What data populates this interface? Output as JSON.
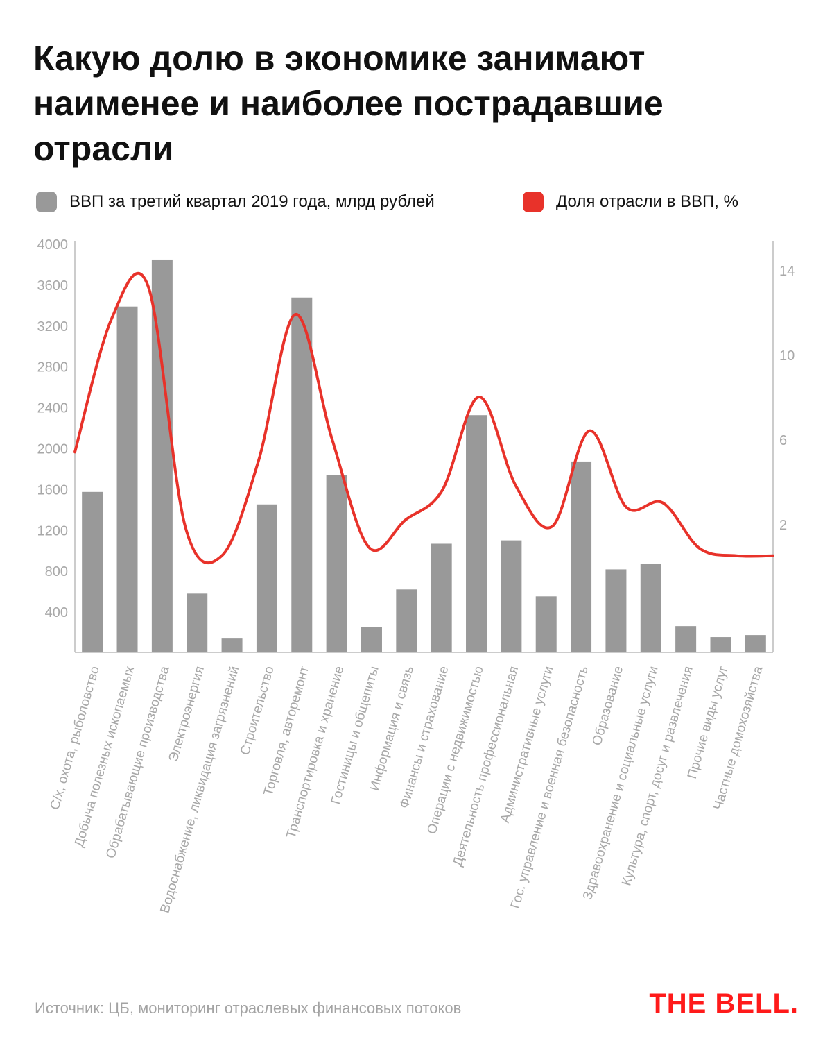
{
  "title": "Какую долю в экономике занимают наименее и наиболее пострадавшие отрасли",
  "legend": {
    "gdp": "ВВП за третий квартал 2019 года, млрд рублей",
    "share": "Доля отрасли в ВВП, %"
  },
  "source": "Источник: ЦБ, мониторинг отраслевых финансовых потоков",
  "logo": "THE BELL.",
  "colors": {
    "bar": "#999999",
    "line": "#e8322a",
    "logo": "#ff1a1a",
    "axis": "#cccccc",
    "tick": "#a8a8a8"
  },
  "chart_data": {
    "type": "bar+line",
    "categories": [
      "С/х, охота, рыболовство",
      "Добыча полезных ископаемых",
      "Обрабатывающие производства",
      "Электроэнергия",
      "Водоснабжение, ликвидация загрязнений",
      "Строительство",
      "Торговля, авторемонт",
      "Транспортировка и хранение",
      "Гостиницы и общепиты",
      "Информация и связь",
      "Финансы и страхование",
      "Операции с недвижимостью",
      "Деятельность профессиональная",
      "Административные услуги",
      "Гос. управление и военная безопасность",
      "Образование",
      "Здравоохранение и социальные услуги",
      "Культура, спорт, досуг и развлечения",
      "Прочие виды услуг",
      "Частные домохозяйства"
    ],
    "series": [
      {
        "name": "ВВП за третий квартал 2019 года, млрд рублей",
        "type": "bar",
        "axis": "left",
        "values": [
          1570,
          3384,
          3844,
          575,
          135,
          1448,
          3472,
          1733,
          250,
          616,
          1063,
          2321,
          1096,
          548,
          1868,
          812,
          866,
          257,
          149,
          169
        ]
      },
      {
        "name": "Доля отрасли в ВВП, %",
        "type": "line",
        "axis": "right",
        "values": [
          5.4,
          11.7,
          13.2,
          1.9,
          0.5,
          5.0,
          11.9,
          6.0,
          0.9,
          2.2,
          3.6,
          8.0,
          3.8,
          1.9,
          6.4,
          2.8,
          3.0,
          0.85,
          0.5,
          0.5
        ]
      }
    ],
    "left_axis": {
      "ylim": [
        0,
        4000
      ],
      "ticks": [
        "400",
        "800",
        "1200",
        "1600",
        "2000",
        "2400",
        "2800",
        "3200",
        "3600",
        "4000"
      ]
    },
    "right_axis": {
      "ylim": [
        0,
        14.6
      ],
      "ticks": [
        "2",
        "6",
        "10",
        "14"
      ]
    },
    "grid": false,
    "legend_position": "top"
  }
}
